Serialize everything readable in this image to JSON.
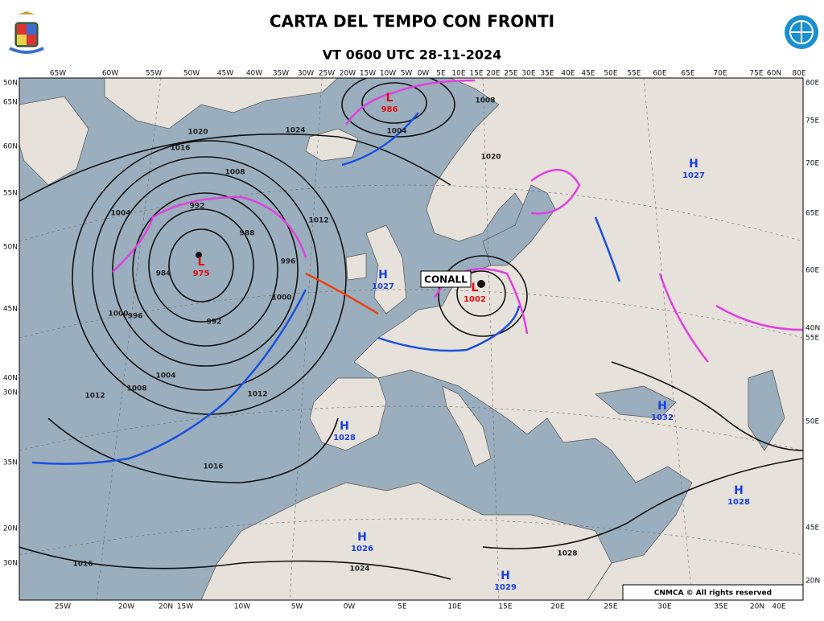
{
  "header": {
    "title": "CARTA DEL TEMPO CON FRONTI",
    "subtitle": "VT 0600 UTC 28-11-2024"
  },
  "storm_name": "CONALL",
  "pressure_centers": [
    {
      "symbol": "L",
      "value": "986"
    },
    {
      "symbol": "L",
      "value": "975"
    },
    {
      "symbol": "H",
      "value": "1027"
    },
    {
      "symbol": "L",
      "value": "1002"
    },
    {
      "symbol": "H",
      "value": "1027"
    },
    {
      "symbol": "H",
      "value": "1032"
    },
    {
      "symbol": "H",
      "value": "1028"
    },
    {
      "symbol": "H",
      "value": "1028"
    },
    {
      "symbol": "H",
      "value": "1026"
    },
    {
      "symbol": "H",
      "value": "1029"
    }
  ],
  "isobar_labels": [
    "1020",
    "1016",
    "1008",
    "1004",
    "992",
    "988",
    "984",
    "996",
    "1000",
    "996",
    "992",
    "1000",
    "1004",
    "1008",
    "1012",
    "1012",
    "1016",
    "1016",
    "1024",
    "1024",
    "1028",
    "1004",
    "1008",
    "1012",
    "1020"
  ],
  "top_axis": [
    "65W",
    "60W",
    "55W",
    "50W",
    "45W",
    "40W",
    "35W",
    "30W",
    "25W",
    "20W",
    "15W",
    "10W",
    "5W",
    "0W",
    "5E",
    "10E",
    "15E",
    "20E",
    "25E",
    "30E",
    "35E",
    "40E",
    "45E",
    "50E",
    "55E",
    "60E",
    "65E",
    "70E",
    "75E",
    "60N",
    "80E"
  ],
  "bottom_axis": [
    "25W",
    "20W",
    "20N",
    "15W",
    "10W",
    "5W",
    "0W",
    "5E",
    "10E",
    "15E",
    "20E",
    "25E",
    "30E",
    "35E",
    "20N",
    "40E"
  ],
  "left_axis": [
    "50N",
    "65N",
    "60N",
    "55N",
    "50N",
    "45N",
    "40N",
    "30N",
    "35N",
    "20N",
    "30N"
  ],
  "right_axis": [
    "80E",
    "75E",
    "70E",
    "65E",
    "60E",
    "40N",
    "55E",
    "50E",
    "45E",
    "20N"
  ],
  "credit": "CNMCA © All rights reserved"
}
